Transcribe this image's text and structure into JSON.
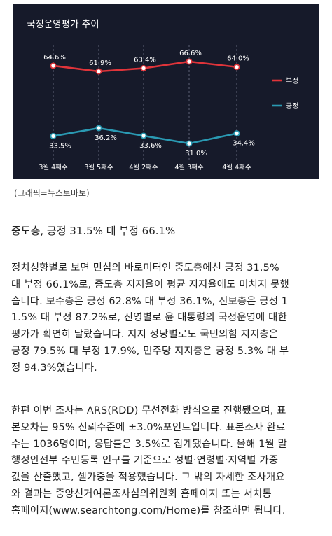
{
  "chart_data": {
    "type": "line",
    "title": "국정운영평가 추이",
    "categories": [
      "3월 4째주",
      "3월 5째주",
      "4월 2째주",
      "4월 3째주",
      "4월 4째주"
    ],
    "series": [
      {
        "name": "부정",
        "color": "#e0343a",
        "values": [
          64.6,
          61.9,
          63.4,
          66.6,
          64.0
        ],
        "labels": [
          "64.6%",
          "61.9%",
          "63.4%",
          "66.6%",
          "64.0%"
        ]
      },
      {
        "name": "긍정",
        "color": "#2a9ab3",
        "values": [
          33.5,
          36.2,
          33.6,
          31.0,
          34.4
        ],
        "labels": [
          "33.5%",
          "36.2%",
          "33.6%",
          "31.0%",
          "34.4%"
        ]
      }
    ],
    "legend_position": "right",
    "grid": "vertical dashed"
  },
  "caption": "(그래픽=뉴스토마토)",
  "subhead": "중도층, 긍정 31.5% 대 부정 66.1%",
  "para1_lines": [
    "정치성향별로 보면 민심의 바로미터인 중도층에선 긍정 31.5%",
    "대 부정 66.1%로, 중도층 지지율이 평균 지지율에도 미치지 못했",
    "습니다. 보수층은 긍정 62.8% 대 부정 36.1%, 진보층은 긍정 1",
    "1.5% 대 부정 87.2%로, 진영별로 윤 대통령의 국정운영에 대한",
    "평가가 확연히 달랐습니다. 지지 정당별로도 국민의힘 지지층은",
    "긍정 79.5% 대 부정 17.9%, 민주당 지지층은 긍정 5.3% 대 부",
    "정 94.3%였습니다."
  ],
  "para2_lines": [
    "한편 이번 조사는 ARS(RDD) 무선전화 방식으로 진행됐으며, 표",
    "본오차는 95% 신뢰수준에 ±3.0%포인트입니다. 표본조사 완료",
    "수는 1036명이며, 응답률은 3.5%로 집계됐습니다. 올해 1월 말",
    "행정안전부 주민등록 인구를 기준으로 성별·연령별·지역별 가중",
    "값을 산출했고, 셀가중을 적용했습니다. 그 밖의 자세한 조사개요",
    "와 결과는 중앙선거여론조사심의위원회 홈페이지 또는 서치통",
    "홈페이지(www.searchtong.com/Home)를 참조하면 됩니다."
  ]
}
